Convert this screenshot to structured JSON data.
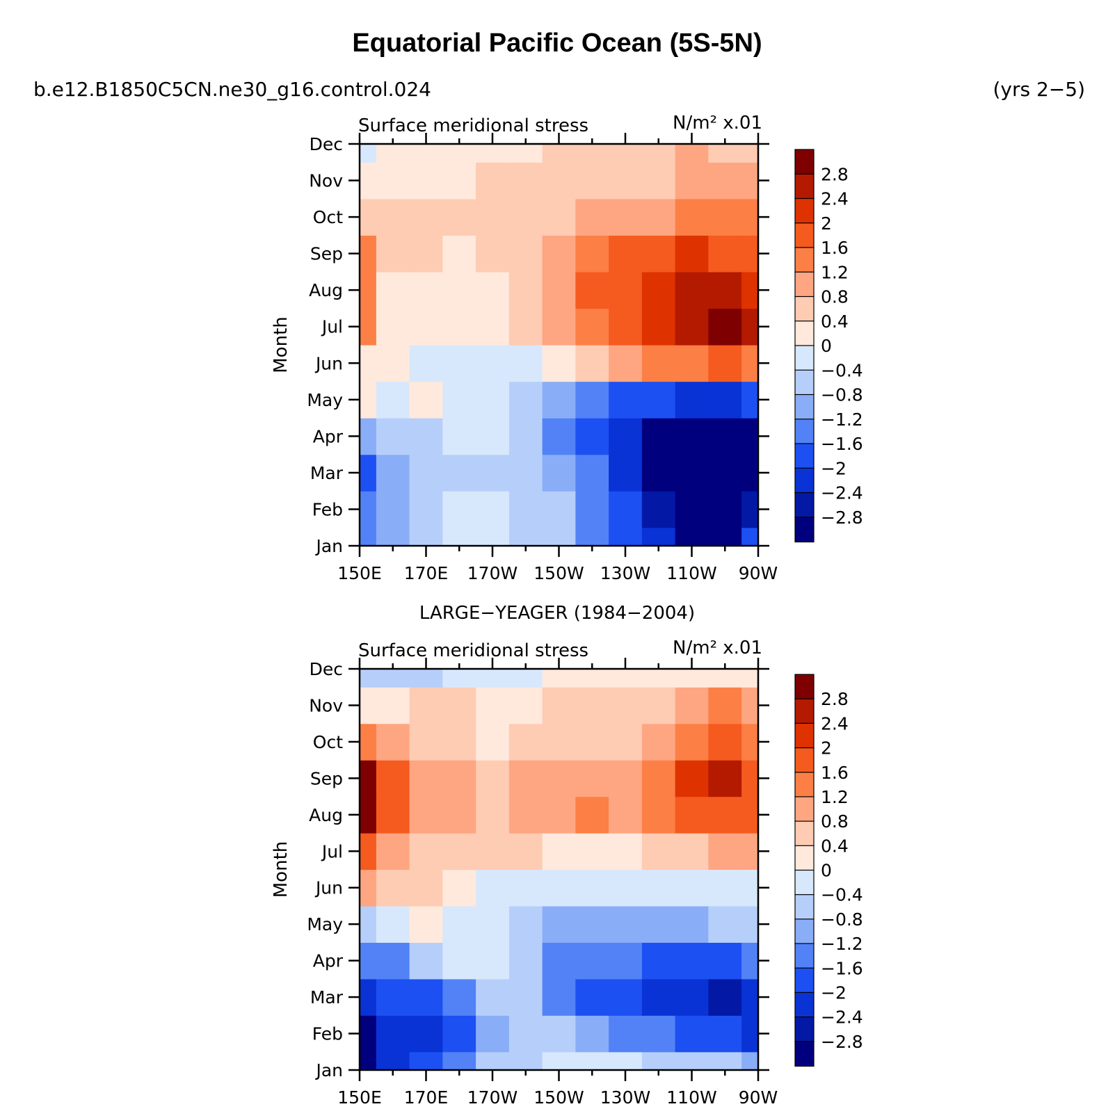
{
  "title": "Equatorial Pacific Ocean (5S-5N)",
  "case_label": "b.e12.B1850C5CN.ne30_g16.control.024",
  "years_label": "(yrs 2−5)",
  "colorbar": {
    "labels": [
      "2.8",
      "2.4",
      "2",
      "1.6",
      "1.2",
      "0.8",
      "0.4",
      "0",
      "−0.4",
      "−0.8",
      "−1.2",
      "−1.6",
      "−2",
      "−2.4",
      "−2.8"
    ],
    "colors": [
      "#7f0000",
      "#b31a00",
      "#de3300",
      "#f55a1f",
      "#fc7f45",
      "#fea682",
      "#fecbb3",
      "#fee9dc",
      "#d8e8fc",
      "#b6cffa",
      "#8aadf7",
      "#5282f6",
      "#1d50f2",
      "#0a33d6",
      "#0319a6",
      "#00007f"
    ]
  },
  "chart_data": [
    {
      "type": "heatmap",
      "subtitle_left": "Surface meridional stress",
      "units": "N/m² x.01",
      "ylabel": "Month",
      "x_labels": [
        "150E",
        "170E",
        "170W",
        "150W",
        "130W",
        "110W",
        "90W"
      ],
      "y_labels": [
        "Jan",
        "Feb",
        "Mar",
        "Apr",
        "May",
        "Jun",
        "Jul",
        "Aug",
        "Sep",
        "Oct",
        "Nov",
        "Dec"
      ],
      "x_columns": [
        "150E",
        "160E",
        "170E",
        "180",
        "170W",
        "160W",
        "150W",
        "140W",
        "130W",
        "120W",
        "110W",
        "100W",
        "90W"
      ],
      "values": [
        [
          -1.5,
          -0.9,
          -0.6,
          -0.4,
          -0.4,
          -0.6,
          -0.8,
          -1.2,
          -1.8,
          -2.4,
          -2.9,
          -3.0,
          -2.0
        ],
        [
          -1.5,
          -0.9,
          -0.6,
          -0.4,
          -0.4,
          -0.6,
          -0.8,
          -1.3,
          -2.0,
          -2.7,
          -3.0,
          -3.2,
          -2.8
        ],
        [
          -1.6,
          -0.9,
          -0.7,
          -0.6,
          -0.6,
          -0.7,
          -1.0,
          -1.5,
          -2.3,
          -2.9,
          -3.2,
          -3.2,
          -3.0
        ],
        [
          -0.9,
          -0.7,
          -0.5,
          -0.4,
          -0.4,
          -0.6,
          -1.2,
          -1.8,
          -2.4,
          -2.9,
          -3.1,
          -3.2,
          -3.0
        ],
        [
          0.2,
          -0.2,
          0.1,
          -0.3,
          -0.3,
          -0.7,
          -1.1,
          -1.4,
          -1.7,
          -2.0,
          -2.2,
          -2.3,
          -2.0
        ],
        [
          0.3,
          0.2,
          -0.2,
          -0.3,
          -0.3,
          -0.2,
          0.2,
          0.5,
          0.9,
          1.2,
          1.4,
          1.6,
          1.5
        ],
        [
          1.3,
          0.3,
          0.2,
          0.3,
          0.2,
          0.4,
          0.8,
          1.4,
          1.8,
          2.2,
          2.6,
          3.0,
          2.4
        ],
        [
          1.3,
          0.3,
          0.1,
          0.1,
          0.2,
          0.5,
          0.9,
          1.6,
          1.9,
          2.2,
          2.4,
          2.4,
          2.0
        ],
        [
          1.3,
          0.5,
          0.4,
          0.3,
          0.5,
          0.7,
          0.9,
          1.3,
          1.6,
          1.8,
          2.0,
          1.9,
          1.8
        ],
        [
          0.6,
          0.5,
          0.5,
          0.5,
          0.6,
          0.6,
          0.7,
          0.8,
          0.9,
          1.0,
          1.2,
          1.3,
          1.3
        ],
        [
          0.1,
          0.3,
          0.3,
          0.3,
          0.4,
          0.5,
          0.6,
          0.6,
          0.6,
          0.7,
          0.9,
          0.9,
          0.8
        ],
        [
          -0.2,
          0.1,
          0.2,
          0.2,
          0.2,
          0.3,
          0.4,
          0.4,
          0.5,
          0.7,
          0.8,
          0.7,
          0.6
        ]
      ]
    },
    {
      "type": "heatmap",
      "title": "LARGE−YEAGER (1984−2004)",
      "subtitle_left": "Surface meridional stress",
      "units": "N/m² x.01",
      "ylabel": "Month",
      "x_labels": [
        "150E",
        "170E",
        "170W",
        "150W",
        "130W",
        "110W",
        "90W"
      ],
      "y_labels": [
        "Jan",
        "Feb",
        "Mar",
        "Apr",
        "May",
        "Jun",
        "Jul",
        "Aug",
        "Sep",
        "Oct",
        "Nov",
        "Dec"
      ],
      "x_columns": [
        "150E",
        "160E",
        "170E",
        "180",
        "170W",
        "160W",
        "150W",
        "140W",
        "130W",
        "120W",
        "110W",
        "100W",
        "90W"
      ],
      "values": [
        [
          -3.2,
          -2.4,
          -1.6,
          -1.2,
          -0.8,
          -0.6,
          -0.4,
          -0.3,
          -0.4,
          -0.5,
          -0.6,
          -0.8,
          -0.9
        ],
        [
          -3.2,
          -2.4,
          -2.2,
          -1.8,
          -0.9,
          -0.7,
          -0.8,
          -1.1,
          -1.3,
          -1.5,
          -1.6,
          -2.0,
          -2.2
        ],
        [
          -2.4,
          -2.0,
          -1.6,
          -1.2,
          -0.6,
          -0.8,
          -1.2,
          -1.6,
          -1.8,
          -2.2,
          -2.4,
          -2.8,
          -2.3
        ],
        [
          -1.5,
          -1.2,
          -0.8,
          -0.4,
          -0.3,
          -0.8,
          -1.2,
          -1.4,
          -1.5,
          -1.7,
          -1.9,
          -1.8,
          -1.5
        ],
        [
          -0.5,
          -0.3,
          0.2,
          -0.1,
          -0.2,
          -0.5,
          -0.9,
          -1.0,
          -1.0,
          -1.0,
          -0.9,
          -0.8,
          -0.6
        ],
        [
          1.0,
          0.6,
          0.5,
          0.3,
          -0.1,
          -0.2,
          -0.3,
          -0.3,
          -0.3,
          -0.4,
          -0.3,
          -0.2,
          -0.2
        ],
        [
          1.8,
          1.0,
          0.6,
          0.4,
          0.4,
          0.4,
          0.3,
          0.3,
          0.3,
          0.5,
          0.7,
          1.0,
          1.0
        ],
        [
          3.2,
          1.8,
          1.0,
          0.9,
          0.6,
          0.8,
          1.0,
          1.3,
          1.0,
          1.5,
          1.8,
          1.9,
          1.6
        ],
        [
          2.8,
          1.8,
          1.1,
          0.9,
          0.5,
          0.8,
          1.0,
          0.9,
          0.8,
          1.4,
          2.2,
          2.6,
          1.9
        ],
        [
          1.4,
          0.9,
          0.7,
          0.5,
          0.2,
          0.4,
          0.6,
          0.6,
          0.6,
          1.0,
          1.5,
          1.9,
          1.5
        ],
        [
          0.2,
          0.3,
          0.4,
          0.4,
          0.2,
          0.3,
          0.4,
          0.5,
          0.5,
          0.6,
          0.9,
          1.2,
          0.8
        ],
        [
          -0.8,
          -0.5,
          -0.5,
          -0.4,
          -0.2,
          -0.1,
          0.0,
          0.2,
          0.2,
          0.2,
          0.3,
          0.3,
          0.2
        ]
      ]
    }
  ]
}
